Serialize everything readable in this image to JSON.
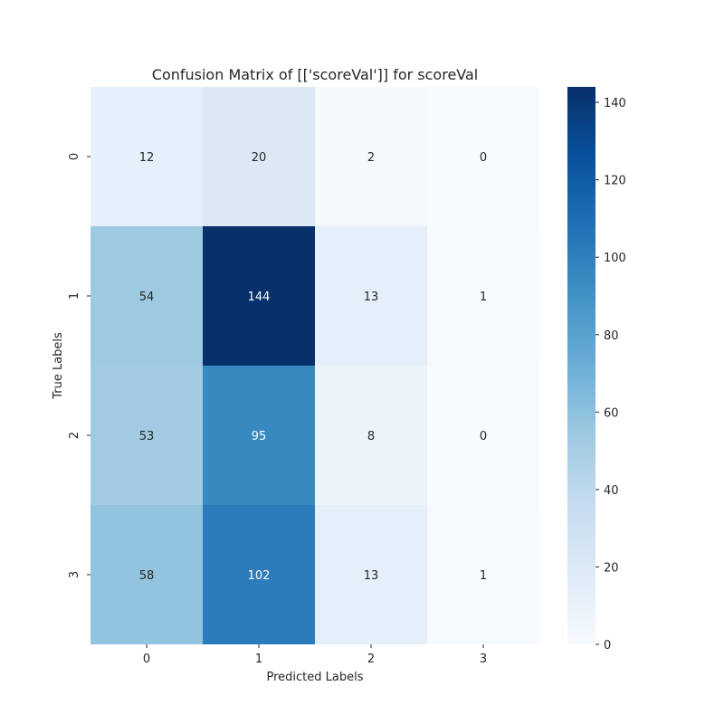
{
  "chart_data": {
    "type": "heatmap",
    "title": "Confusion Matrix of [['scoreVal']] for scoreVal",
    "xlabel": "Predicted Labels",
    "ylabel": "True Labels",
    "x_categories": [
      "0",
      "1",
      "2",
      "3"
    ],
    "y_categories": [
      "0",
      "1",
      "2",
      "3"
    ],
    "values": [
      [
        12,
        20,
        2,
        0
      ],
      [
        54,
        144,
        13,
        1
      ],
      [
        53,
        95,
        8,
        0
      ],
      [
        58,
        102,
        13,
        1
      ]
    ],
    "colormap": "Blues",
    "colorbar": {
      "min": 0,
      "max": 144,
      "ticks": [
        "0",
        "20",
        "40",
        "60",
        "80",
        "100",
        "120",
        "140"
      ]
    },
    "colors": {
      "low": "#f7fbff",
      "high": "#08306b"
    }
  }
}
